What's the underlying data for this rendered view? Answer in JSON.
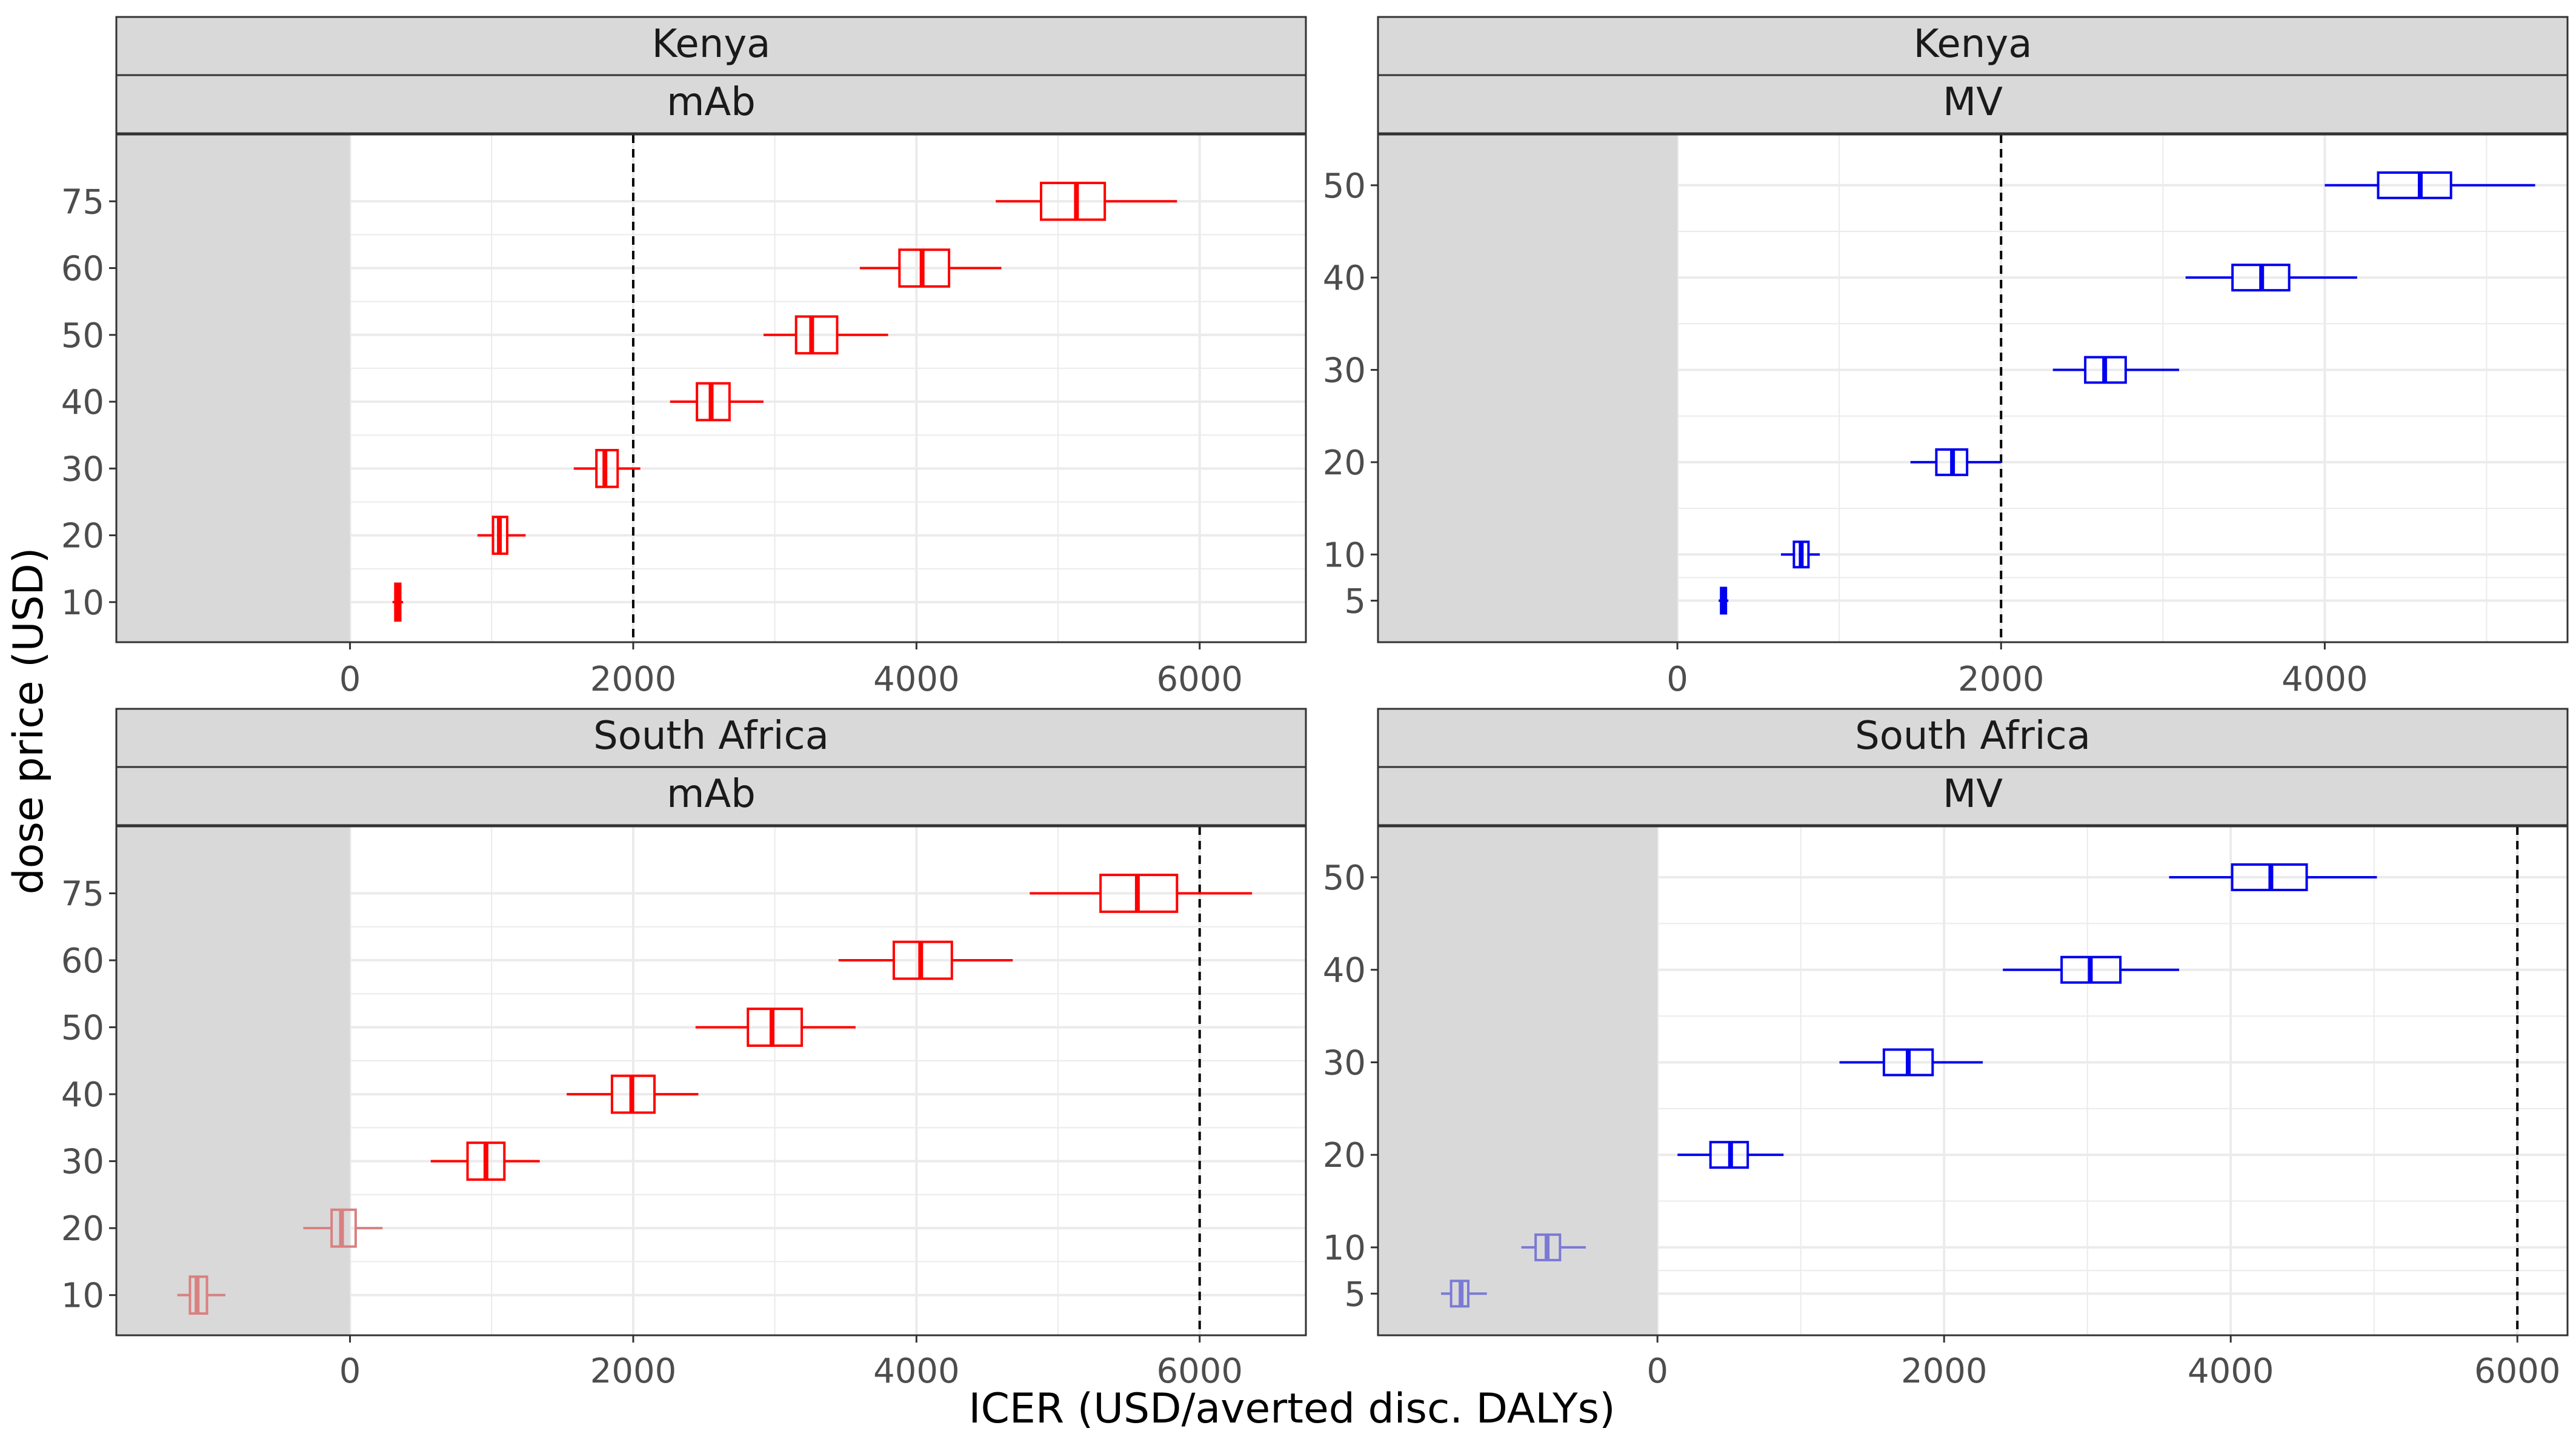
{
  "x_label": "ICER (USD/averted disc. DALYs)",
  "y_label": "dose price (USD)",
  "colors": {
    "mAb": "#ff0000",
    "mAb_light": "#d98080",
    "MV": "#0000ee",
    "MV_light": "#7a7ad6",
    "shade": "#d9d9d9",
    "strip": "#d9d9d9",
    "grid": "#ebebeb"
  },
  "chart_data": [
    {
      "type": "boxplot",
      "country": "Kenya",
      "product": "mAb",
      "xlim": [
        -1650,
        6750
      ],
      "ylim": [
        4,
        80
      ],
      "x_ticks": [
        0,
        2000,
        4000,
        6000
      ],
      "y_ticks": [
        10,
        20,
        30,
        40,
        50,
        60,
        75
      ],
      "y_positions": [
        10,
        20,
        30,
        40,
        50,
        60,
        70
      ],
      "threshold": 2000,
      "boxes": [
        {
          "price": 10,
          "min": 300,
          "q1": 320,
          "median": 335,
          "q3": 355,
          "max": 375
        },
        {
          "price": 20,
          "min": 900,
          "q1": 1010,
          "median": 1055,
          "q3": 1110,
          "max": 1240
        },
        {
          "price": 30,
          "min": 1580,
          "q1": 1740,
          "median": 1800,
          "q3": 1890,
          "max": 2050
        },
        {
          "price": 40,
          "min": 2260,
          "q1": 2450,
          "median": 2550,
          "q3": 2680,
          "max": 2920
        },
        {
          "price": 50,
          "min": 2920,
          "q1": 3150,
          "median": 3260,
          "q3": 3440,
          "max": 3800
        },
        {
          "price": 60,
          "min": 3600,
          "q1": 3880,
          "median": 4040,
          "q3": 4230,
          "max": 4600
        },
        {
          "price": 75,
          "min": 4560,
          "q1": 4880,
          "median": 5130,
          "q3": 5330,
          "max": 5840
        }
      ]
    },
    {
      "type": "boxplot",
      "country": "Kenya",
      "product": "MV",
      "xlim": [
        -1850,
        5500
      ],
      "ylim": [
        0.5,
        55.5
      ],
      "x_ticks": [
        0,
        2000,
        4000
      ],
      "y_ticks": [
        5,
        10,
        20,
        30,
        40,
        50
      ],
      "y_positions": [
        5,
        10,
        20,
        30,
        40,
        50
      ],
      "threshold": 2000,
      "boxes": [
        {
          "price": 5,
          "min": 255,
          "q1": 270,
          "median": 285,
          "q3": 300,
          "max": 315
        },
        {
          "price": 10,
          "min": 640,
          "q1": 720,
          "median": 765,
          "q3": 810,
          "max": 880
        },
        {
          "price": 20,
          "min": 1440,
          "q1": 1600,
          "median": 1700,
          "q3": 1790,
          "max": 2000
        },
        {
          "price": 30,
          "min": 2320,
          "q1": 2520,
          "median": 2640,
          "q3": 2770,
          "max": 3100
        },
        {
          "price": 40,
          "min": 3140,
          "q1": 3430,
          "median": 3610,
          "q3": 3780,
          "max": 4200
        },
        {
          "price": 50,
          "min": 4000,
          "q1": 4330,
          "median": 4590,
          "q3": 4780,
          "max": 5300
        }
      ]
    },
    {
      "type": "boxplot",
      "country": "South Africa",
      "product": "mAb",
      "xlim": [
        -1650,
        6750
      ],
      "ylim": [
        4,
        80
      ],
      "x_ticks": [
        0,
        2000,
        4000,
        6000
      ],
      "y_ticks": [
        10,
        20,
        30,
        40,
        50,
        60,
        75
      ],
      "y_positions": [
        10,
        20,
        30,
        40,
        50,
        60,
        70
      ],
      "threshold": 6000,
      "boxes": [
        {
          "price": 10,
          "min": -1220,
          "q1": -1130,
          "median": -1080,
          "q3": -1010,
          "max": -880,
          "faded": true
        },
        {
          "price": 20,
          "min": -330,
          "q1": -130,
          "median": -60,
          "q3": 40,
          "max": 230,
          "faded": true
        },
        {
          "price": 30,
          "min": 570,
          "q1": 830,
          "median": 960,
          "q3": 1090,
          "max": 1340
        },
        {
          "price": 40,
          "min": 1530,
          "q1": 1850,
          "median": 1990,
          "q3": 2150,
          "max": 2460
        },
        {
          "price": 50,
          "min": 2440,
          "q1": 2810,
          "median": 2980,
          "q3": 3190,
          "max": 3570
        },
        {
          "price": 60,
          "min": 3450,
          "q1": 3840,
          "median": 4030,
          "q3": 4250,
          "max": 4680
        },
        {
          "price": 75,
          "min": 4800,
          "q1": 5300,
          "median": 5560,
          "q3": 5840,
          "max": 6370
        }
      ]
    },
    {
      "type": "boxplot",
      "country": "South Africa",
      "product": "MV",
      "xlim": [
        -1950,
        6350
      ],
      "ylim": [
        0.5,
        55.5
      ],
      "x_ticks": [
        0,
        2000,
        4000,
        6000
      ],
      "y_ticks": [
        5,
        10,
        20,
        30,
        40,
        50
      ],
      "y_positions": [
        5,
        10,
        20,
        30,
        40,
        50
      ],
      "threshold": 6000,
      "boxes": [
        {
          "price": 5,
          "min": -1510,
          "q1": -1440,
          "median": -1370,
          "q3": -1320,
          "max": -1190,
          "faded": true
        },
        {
          "price": 10,
          "min": -950,
          "q1": -850,
          "median": -770,
          "q3": -680,
          "max": -500,
          "faded": true
        },
        {
          "price": 20,
          "min": 140,
          "q1": 370,
          "median": 510,
          "q3": 630,
          "max": 880
        },
        {
          "price": 30,
          "min": 1270,
          "q1": 1580,
          "median": 1750,
          "q3": 1920,
          "max": 2270
        },
        {
          "price": 40,
          "min": 2410,
          "q1": 2820,
          "median": 3020,
          "q3": 3230,
          "max": 3640
        },
        {
          "price": 50,
          "min": 3570,
          "q1": 4010,
          "median": 4280,
          "q3": 4530,
          "max": 5020
        }
      ]
    }
  ]
}
